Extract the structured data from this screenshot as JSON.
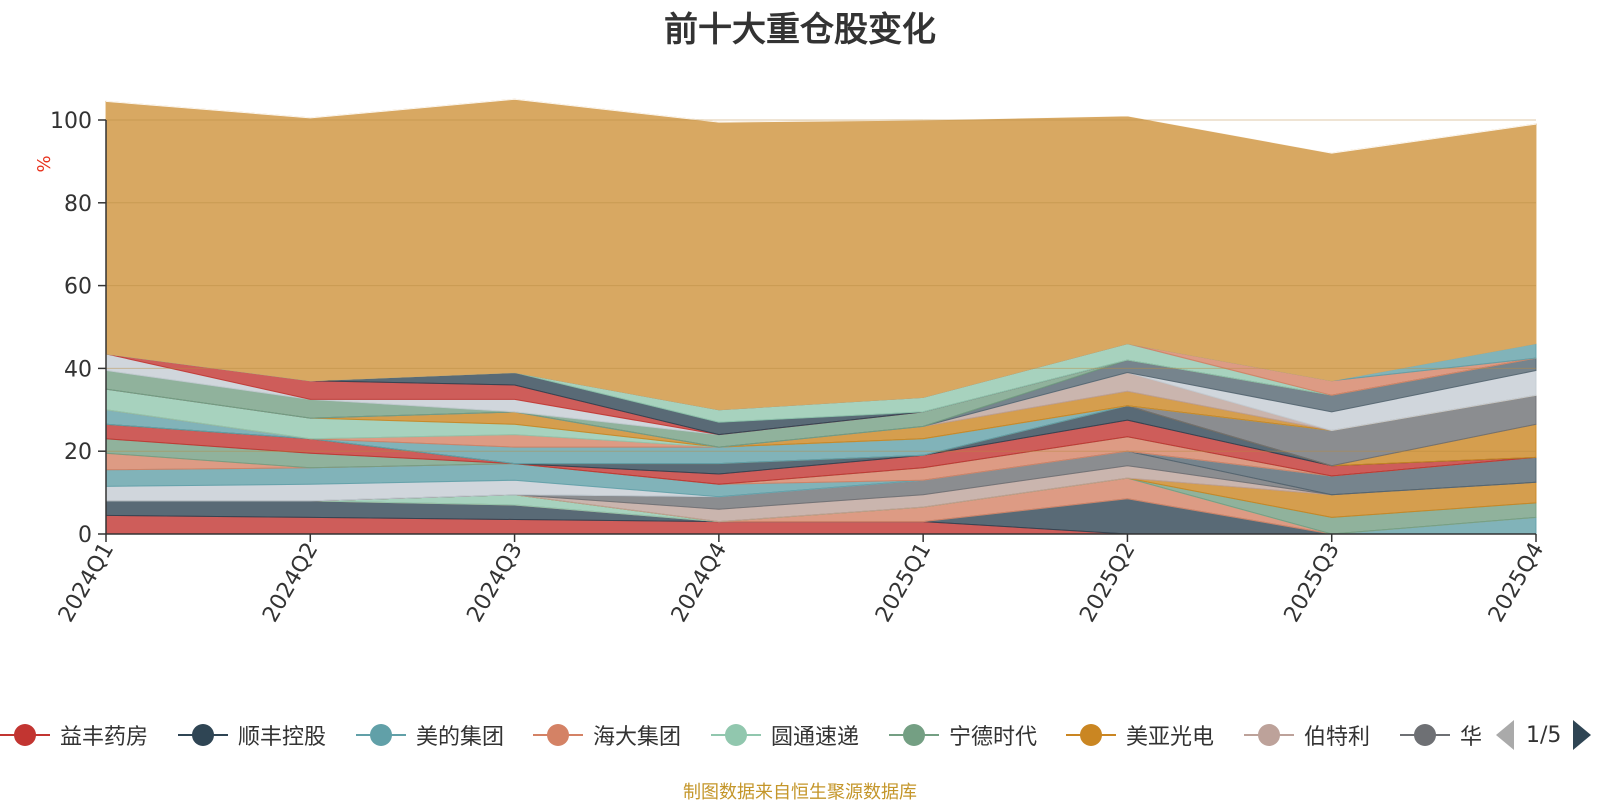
{
  "chart_data": {
    "type": "area",
    "title": "前十大重仓股变化",
    "ylabel": "%",
    "xlabel": "",
    "ylim": [
      0,
      100
    ],
    "yticks": [
      0,
      20,
      40,
      60,
      80,
      100
    ],
    "grid": true,
    "categories": [
      "2024Q1",
      "2024Q2",
      "2024Q3",
      "2024Q4",
      "2025Q1",
      "2025Q2",
      "2025Q3",
      "2025Q4"
    ],
    "legend_position": "bottom",
    "series": [
      {
        "name": "益丰药房",
        "color": "#c23531",
        "values": [
          4.5,
          4.0,
          3.5,
          3.0,
          3.0,
          0.0,
          0.0,
          0.0
        ]
      },
      {
        "name": "顺丰控股",
        "color": "#2f4554",
        "values": [
          3.5,
          4.0,
          3.5,
          0.0,
          0.0,
          8.5,
          0.0,
          0.0
        ]
      },
      {
        "name": "美的集团",
        "color": "#61a0a8",
        "values": [
          0.0,
          0.0,
          0.0,
          0.0,
          0.0,
          0.0,
          0.0,
          4.0
        ]
      },
      {
        "name": "海大集团",
        "color": "#d48265",
        "values": [
          0.0,
          0.0,
          0.0,
          0.0,
          3.5,
          5.0,
          0.0,
          0.0
        ]
      },
      {
        "name": "圆通速递",
        "color": "#91c7ae",
        "values": [
          0.0,
          0.0,
          2.5,
          0.0,
          0.0,
          0.0,
          0.0,
          0.0
        ]
      },
      {
        "name": "宁德时代",
        "color": "#749f83",
        "values": [
          0.0,
          0.0,
          0.0,
          0.0,
          0.0,
          0.0,
          4.0,
          3.5
        ]
      },
      {
        "name": "美亚光电",
        "color": "#ca8622",
        "values": [
          0.0,
          0.0,
          0.0,
          0.0,
          0.0,
          0.0,
          5.5,
          5.0
        ]
      },
      {
        "name": "伯特利",
        "color": "#bda29a",
        "values": [
          0.0,
          0.0,
          0.0,
          3.0,
          3.0,
          3.0,
          0.0,
          0.0
        ]
      },
      {
        "name": "华…",
        "color": "#6e7074",
        "values": [
          0.0,
          0.0,
          0.0,
          3.0,
          3.5,
          3.5,
          0.0,
          0.0
        ]
      },
      {
        "name": "",
        "color": "#546570",
        "values": [
          0.0,
          0.0,
          0.0,
          0.0,
          0.0,
          0.0,
          4.5,
          6.0
        ]
      },
      {
        "name": "",
        "color": "#c4ccd3",
        "values": [
          3.5,
          4.0,
          3.5,
          0.0,
          0.0,
          0.0,
          0.0,
          0.0
        ]
      },
      {
        "name": "",
        "color": "#61a0a8",
        "values": [
          4.0,
          4.0,
          4.0,
          3.0,
          0.0,
          0.0,
          0.0,
          0.0
        ]
      },
      {
        "name": "",
        "color": "#d48265",
        "values": [
          4.0,
          0.0,
          0.0,
          0.0,
          3.0,
          3.5,
          0.0,
          0.0
        ]
      },
      {
        "name": "",
        "color": "#749f83",
        "values": [
          3.5,
          3.5,
          0.0,
          0.0,
          0.0,
          0.0,
          0.0,
          0.0
        ]
      },
      {
        "name": "",
        "color": "#c23531",
        "values": [
          3.5,
          3.5,
          0.0,
          2.5,
          3.0,
          4.0,
          2.5,
          0.0
        ]
      },
      {
        "name": "",
        "color": "#2f4554",
        "values": [
          0.0,
          0.0,
          0.0,
          2.5,
          0.0,
          3.5,
          0.0,
          0.0
        ]
      },
      {
        "name": "",
        "color": "#ca8622",
        "values": [
          0.0,
          0.0,
          0.0,
          0.0,
          0.0,
          0.0,
          0.0,
          8.0
        ]
      },
      {
        "name": "",
        "color": "#6e7074",
        "values": [
          0.0,
          0.0,
          0.0,
          0.0,
          0.0,
          0.0,
          8.5,
          7.0
        ]
      },
      {
        "name": "",
        "color": "#61a0a8",
        "values": [
          3.5,
          0.0,
          4.0,
          4.0,
          4.0,
          0.0,
          0.0,
          0.0
        ]
      },
      {
        "name": "",
        "color": "#d48265",
        "values": [
          0.0,
          0.0,
          3.0,
          0.0,
          0.0,
          0.0,
          0.0,
          0.0
        ]
      },
      {
        "name": "",
        "color": "#91c7ae",
        "values": [
          5.0,
          5.0,
          2.5,
          0.0,
          0.0,
          0.0,
          0.0,
          0.0
        ]
      },
      {
        "name": "",
        "color": "#ca8622",
        "values": [
          0.0,
          0.0,
          3.0,
          0.0,
          3.0,
          3.5,
          0.0,
          0.0
        ]
      },
      {
        "name": "",
        "color": "#bda29a",
        "values": [
          0.0,
          0.0,
          0.0,
          0.0,
          0.0,
          4.5,
          0.0,
          0.0
        ]
      },
      {
        "name": "",
        "color": "#c4ccd3",
        "values": [
          0.0,
          0.0,
          0.0,
          0.0,
          0.0,
          0.0,
          4.5,
          6.0
        ]
      },
      {
        "name": "",
        "color": "#546570",
        "values": [
          0.0,
          0.0,
          0.0,
          0.0,
          0.0,
          3.0,
          4.0,
          3.0
        ]
      },
      {
        "name": "",
        "color": "#749f83",
        "values": [
          4.5,
          4.5,
          0.0,
          3.0,
          3.5,
          0.0,
          0.0,
          0.0
        ]
      },
      {
        "name": "",
        "color": "#c4ccd3",
        "values": [
          4.0,
          0.0,
          3.0,
          0.0,
          0.0,
          0.0,
          0.0,
          0.0
        ]
      },
      {
        "name": "",
        "color": "#c23531",
        "values": [
          0.0,
          4.5,
          3.5,
          0.0,
          0.0,
          0.0,
          0.0,
          0.0
        ]
      },
      {
        "name": "",
        "color": "#2f4554",
        "values": [
          0.0,
          0.0,
          3.0,
          3.0,
          0.0,
          0.0,
          0.0,
          0.0
        ]
      },
      {
        "name": "",
        "color": "#91c7ae",
        "values": [
          0.0,
          0.0,
          0.0,
          3.0,
          3.5,
          4.0,
          0.0,
          0.0
        ]
      },
      {
        "name": "",
        "color": "#d48265",
        "values": [
          0.0,
          0.0,
          0.0,
          0.0,
          0.0,
          0.0,
          3.5,
          0.0
        ]
      },
      {
        "name": "",
        "color": "#61a0a8",
        "values": [
          0.0,
          0.0,
          0.0,
          0.0,
          0.0,
          0.0,
          0.0,
          3.5
        ]
      },
      {
        "name": "",
        "color": "#d8a862",
        "values": [
          61.0,
          63.5,
          66.0,
          69.5,
          67.0,
          55.0,
          55.0,
          53.0
        ]
      },
      {
        "name": "",
        "color": "#ffffff",
        "values": [
          0.0,
          0.0,
          0.0,
          0.0,
          0.0,
          2.0,
          0.0,
          0.0
        ]
      }
    ]
  },
  "legend": {
    "page_indicator": "1/5"
  },
  "source_note": "制图数据来自恒生聚源数据库"
}
